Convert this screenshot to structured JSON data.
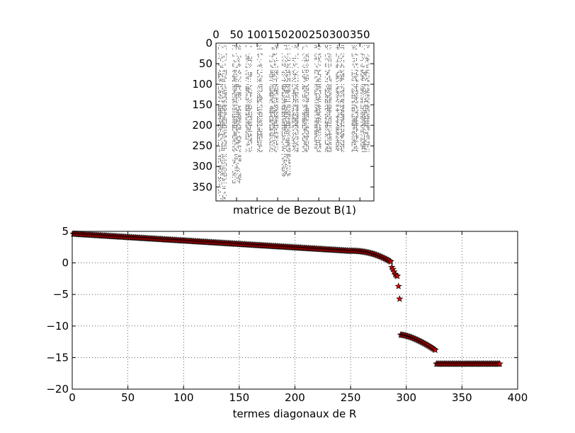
{
  "chart_data": [
    {
      "type": "heatmap",
      "subtype": "spy-sparsity-pattern",
      "title": "",
      "xlabel": "matrice de Bezout B(1)",
      "ylabel": "",
      "xlim": [
        0,
        384
      ],
      "ylim": [
        384,
        0
      ],
      "x_ticks": [
        0,
        50,
        100,
        150,
        200,
        250,
        300,
        350
      ],
      "y_ticks": [
        0,
        50,
        100,
        150,
        200,
        250,
        300,
        350
      ],
      "x_tick_labels": [
        "0",
        "50",
        "100",
        "150",
        "200",
        "250",
        "300",
        "350"
      ],
      "y_tick_labels": [
        "0",
        "50",
        "100",
        "150",
        "200",
        "250",
        "300",
        "350"
      ],
      "x_axis_position": "top",
      "matrix_size": 384,
      "column_blocks": [
        {
          "x": [
            5,
            25
          ],
          "row_range": [
            0,
            384
          ]
        },
        {
          "x": [
            40,
            60
          ],
          "row_range": [
            0,
            340
          ]
        },
        {
          "x": [
            72,
            88
          ],
          "row_range": [
            0,
            270
          ]
        },
        {
          "x": [
            100,
            112
          ],
          "row_range": [
            0,
            270
          ]
        },
        {
          "x": [
            130,
            150
          ],
          "row_range": [
            0,
            265
          ]
        },
        {
          "x": [
            160,
            180
          ],
          "row_range": [
            0,
            325
          ]
        },
        {
          "x": [
            185,
            200
          ],
          "row_range": [
            0,
            270
          ]
        },
        {
          "x": [
            210,
            226
          ],
          "row_range": [
            0,
            265
          ]
        },
        {
          "x": [
            240,
            255
          ],
          "row_range": [
            0,
            270
          ]
        },
        {
          "x": [
            265,
            280
          ],
          "row_range": [
            0,
            270
          ]
        },
        {
          "x": [
            292,
            300
          ],
          "row_range": [
            0,
            270
          ]
        },
        {
          "x": [
            302,
            312
          ],
          "row_range": [
            0,
            270
          ]
        },
        {
          "x": [
            330,
            345
          ],
          "row_range": [
            0,
            270
          ]
        },
        {
          "x": [
            352,
            372
          ],
          "row_range": [
            0,
            270
          ]
        }
      ],
      "row_bands": [
        {
          "y": [
            5,
            15
          ],
          "density": 0.35
        },
        {
          "y": [
            25,
            45
          ],
          "density": 0.35
        },
        {
          "y": [
            50,
            60
          ],
          "density": 0.4
        },
        {
          "y": [
            65,
            95
          ],
          "density": 0.5
        },
        {
          "y": [
            100,
            145
          ],
          "density": 0.6
        },
        {
          "y": [
            150,
            200
          ],
          "density": 0.7
        },
        {
          "y": [
            200,
            230
          ],
          "density": 0.6
        },
        {
          "y": [
            230,
            265
          ],
          "density": 0.5
        },
        {
          "y": [
            270,
            320
          ],
          "density": 0.45
        },
        {
          "y": [
            320,
            384
          ],
          "density": 0.35
        }
      ]
    },
    {
      "type": "scatter",
      "title": "",
      "xlabel": "termes diagonaux de R",
      "ylabel": "",
      "xlim": [
        0,
        400
      ],
      "ylim": [
        -20,
        5
      ],
      "x_ticks": [
        0,
        50,
        100,
        150,
        200,
        250,
        300,
        350,
        400
      ],
      "y_ticks": [
        5,
        0,
        -5,
        -10,
        -15,
        -20
      ],
      "x_tick_labels": [
        "0",
        "50",
        "100",
        "150",
        "200",
        "250",
        "300",
        "350",
        "400"
      ],
      "y_tick_labels": [
        "5",
        "0",
        "−5",
        "−10",
        "−15",
        "−20"
      ],
      "grid": true,
      "marker": "star",
      "marker_color": "#dd0000",
      "series": [
        {
          "segments": [
            {
              "x_range": [
                1,
                249
              ],
              "y_start": 4.6,
              "y_end": 1.9,
              "shape": "linear"
            },
            {
              "x_range": [
                250,
                286
              ],
              "y_start": 1.9,
              "y_end": 0.2,
              "shape": "steepening"
            },
            {
              "points": [
                [
                  287,
                  -0.7
                ],
                [
                  288,
                  -1.0
                ],
                [
                  289,
                  -1.4
                ],
                [
                  290,
                  -1.8
                ],
                [
                  291,
                  -2.0
                ],
                [
                  292,
                  -2.1
                ],
                [
                  293,
                  -3.7
                ],
                [
                  294,
                  -5.7
                ]
              ]
            },
            {
              "x_range": [
                295,
                326
              ],
              "y_start": -11.4,
              "y_end": -13.8,
              "shape": "slightly-steepening"
            },
            {
              "x_range": [
                327,
                384
              ],
              "y_start": -16.0,
              "y_end": -16.0,
              "shape": "flat"
            }
          ]
        }
      ]
    }
  ]
}
